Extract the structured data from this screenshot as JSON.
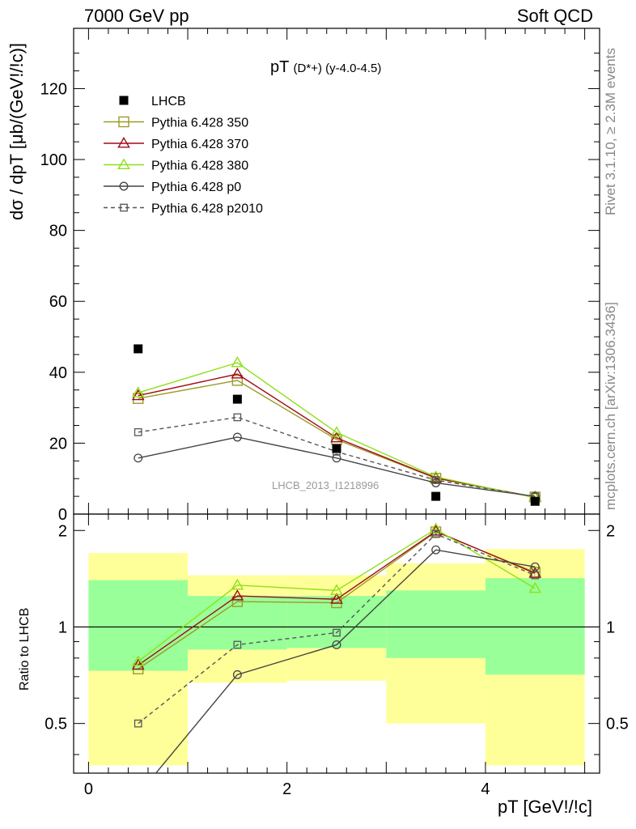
{
  "header": {
    "left": "7000 GeV pp",
    "right": "Soft QCD"
  },
  "side_labels": {
    "rivet": "Rivet 3.1.10, ≥ 2.3M events",
    "mcplots": "mcplots.cern.ch [arXiv:1306.3436]"
  },
  "colors": {
    "lhcb": "#000000",
    "py350": "#9c9b27",
    "py370": "#a00b18",
    "py380": "#8ee01a",
    "pyp0": "#444444",
    "pyp2010": "#555555",
    "band_yellow": "#ffff99",
    "band_green": "#99ff99"
  },
  "chart_data": [
    {
      "type": "line",
      "title": "pT(D*+) (y-4.0-4.5)",
      "title_main": "pT",
      "title_sub": "(D*+) (y-4.0-4.5)",
      "xlabel": "pT [GeV!/!c]",
      "ylabel": "dσ / dpT [μb/(GeV!/!c)]",
      "ylim": [
        0,
        137
      ],
      "xlim": [
        -0.15,
        5.15
      ],
      "yticks": [
        0,
        20,
        40,
        60,
        80,
        100,
        120
      ],
      "watermark": "LHCB_2013_I1218996",
      "legend_position": "top-left",
      "x": [
        0.5,
        1.5,
        2.5,
        3.5,
        4.5
      ],
      "series": [
        {
          "name": "LHCB",
          "key": "lhcb",
          "marker": "square-filled",
          "values": [
            46.6,
            32.4,
            18.5,
            5.0,
            3.6
          ]
        },
        {
          "name": "Pythia 6.428 350",
          "key": "py350",
          "marker": "square-open",
          "values": [
            32.6,
            37.7,
            21.0,
            10.1,
            4.8
          ]
        },
        {
          "name": "Pythia 6.428 370",
          "key": "py370",
          "marker": "triangle-open",
          "values": [
            33.4,
            39.5,
            21.5,
            10.2,
            4.8
          ]
        },
        {
          "name": "Pythia 6.428 380",
          "key": "py380",
          "marker": "triangle-open",
          "values": [
            34.2,
            42.7,
            23.0,
            10.5,
            4.6
          ]
        },
        {
          "name": "Pythia 6.428 p0",
          "key": "pyp0",
          "marker": "circle-open",
          "values": [
            15.8,
            21.7,
            15.8,
            8.8,
            5.0
          ]
        },
        {
          "name": "Pythia 6.428 p2010",
          "key": "pyp2010",
          "marker": "square-small-dashed",
          "values": [
            23.1,
            27.3,
            17.6,
            9.6,
            4.9
          ]
        }
      ]
    },
    {
      "type": "line",
      "ylabel": "Ratio to LHCB",
      "ylim": [
        0.35,
        2.25
      ],
      "xlim": [
        -0.15,
        5.15
      ],
      "xticks": [
        0,
        2,
        4
      ],
      "yticks": [
        0.5,
        1,
        2
      ],
      "reference_line": 1,
      "bins": [
        [
          0,
          1
        ],
        [
          1,
          2
        ],
        [
          2,
          3
        ],
        [
          3,
          4
        ],
        [
          4,
          5
        ]
      ],
      "band_yellow": [
        [
          0.37,
          1.7
        ],
        [
          0.67,
          1.45
        ],
        [
          0.68,
          1.45
        ],
        [
          0.5,
          1.58
        ],
        [
          0.37,
          1.75
        ]
      ],
      "band_green": [
        [
          0.73,
          1.4
        ],
        [
          0.85,
          1.25
        ],
        [
          0.86,
          1.25
        ],
        [
          0.8,
          1.3
        ],
        [
          0.71,
          1.42
        ]
      ],
      "x": [
        0.5,
        1.5,
        2.5,
        3.5,
        4.5
      ],
      "series": [
        {
          "name": "Pythia 6.428 350",
          "key": "py350",
          "marker": "square-open",
          "values": [
            0.74,
            1.2,
            1.19,
            1.98,
            1.48
          ]
        },
        {
          "name": "Pythia 6.428 370",
          "key": "py370",
          "marker": "triangle-open",
          "values": [
            0.76,
            1.25,
            1.22,
            1.99,
            1.47
          ]
        },
        {
          "name": "Pythia 6.428 380",
          "key": "py380",
          "marker": "triangle-open",
          "values": [
            0.78,
            1.35,
            1.3,
            2.02,
            1.32
          ]
        },
        {
          "name": "Pythia 6.428 p0",
          "key": "pyp0",
          "marker": "circle-open",
          "values": [
            0.3,
            0.71,
            0.88,
            1.74,
            1.54
          ]
        },
        {
          "name": "Pythia 6.428 p2010",
          "key": "pyp2010",
          "marker": "square-small-dashed",
          "values": [
            0.5,
            0.88,
            0.96,
            1.95,
            1.45
          ]
        }
      ]
    }
  ]
}
